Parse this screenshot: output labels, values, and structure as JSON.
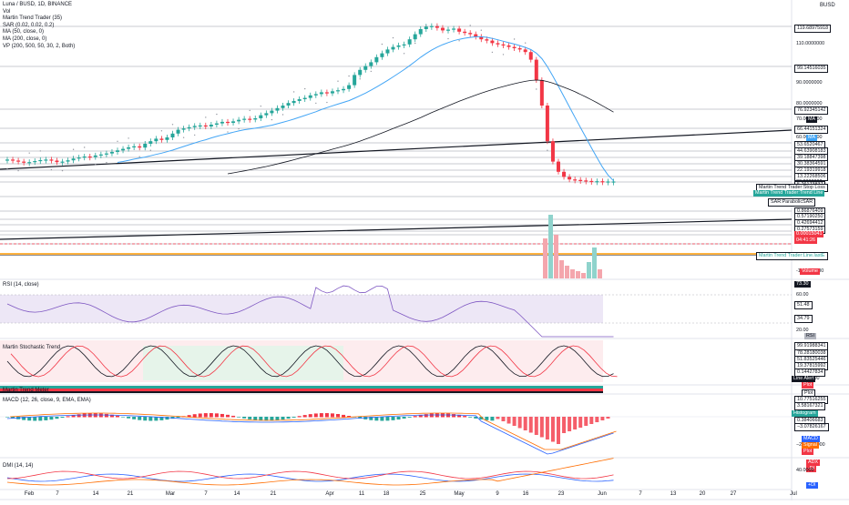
{
  "legend": {
    "symbol": "Luna / BUSD, 1D, BINANCE",
    "vol": "Vol",
    "martin": "Martin Trend Trader (35)",
    "sar": "SAR (0.02, 0.02, 0.2)",
    "ma50": "MA (50, close, 0)",
    "ma200": "MA (200, close, 0)",
    "vp": "VP (200, 500, 50, 30, 2, Both)"
  },
  "pane_titles": {
    "rsi": "RSI (14, close)",
    "stoch": "Martin Stochastic Trend",
    "meter": "Martin Trend Meter",
    "macd": "MACD (12, 26, close, 9, EMA, EMA)",
    "dmi": "DMI (14, 14)"
  },
  "top_unit": "BUSD",
  "price_axis": [
    {
      "text": "119.68975918",
      "tag": true,
      "bg": "#ffffff",
      "fg": "#131722",
      "border": true
    },
    {
      "text": "110.0000000",
      "tag": false
    },
    {
      "text": "99.14516035",
      "tag": true,
      "bg": "#ffffff",
      "fg": "#131722",
      "border": true
    },
    {
      "text": "90.0000000",
      "tag": false
    },
    {
      "text": "80.0000000",
      "tag": false
    },
    {
      "text": "76.92345142",
      "tag": true,
      "bg": "#ffffff",
      "fg": "#131722",
      "border": true
    },
    {
      "text": "70.0000000",
      "tag": false
    },
    {
      "text": "66.44151324",
      "tag": true,
      "bg": "#ffffff",
      "fg": "#131722",
      "border": true
    },
    {
      "text": "60.0000000",
      "tag": false
    },
    {
      "text": "53.6520467",
      "tag": true,
      "bg": "#ffffff",
      "fg": "#131722",
      "border": true
    },
    {
      "text": "44.63908183",
      "tag": true,
      "bg": "#ffffff",
      "fg": "#131722",
      "border": true
    },
    {
      "text": "39.18847398",
      "tag": true,
      "bg": "#ffffff",
      "fg": "#131722",
      "border": true
    },
    {
      "text": "30.38364591",
      "tag": true,
      "bg": "#ffffff",
      "fg": "#131722",
      "border": true
    },
    {
      "text": "22.19319918",
      "tag": true,
      "bg": "#ffffff",
      "fg": "#131722",
      "border": true
    },
    {
      "text": "13.22268506",
      "tag": true,
      "bg": "#ffffff",
      "fg": "#131722",
      "border": true
    },
    {
      "text": "30.0000000",
      "tag": false
    },
    {
      "text": "5.26173837",
      "tag": true,
      "bg": "#ffffff",
      "fg": "#131722",
      "border": true
    },
    {
      "text": "0.86876409",
      "tag": true,
      "bg": "#ffffff",
      "fg": "#131722",
      "border": true
    },
    {
      "text": "0.57190250",
      "tag": true,
      "bg": "#ffffff",
      "fg": "#131722",
      "border": true
    },
    {
      "text": "0.42694412",
      "tag": true,
      "bg": "#ffffff",
      "fg": "#131722",
      "border": true
    },
    {
      "text": "0.27573159",
      "tag": true,
      "bg": "#ffffff",
      "fg": "#131722",
      "border": true
    },
    {
      "text": "0.00015041",
      "tag": true,
      "bg": "#f23645",
      "fg": "#ffffff",
      "border": false
    },
    {
      "text": "04:41:26",
      "tag": true,
      "bg": "#f23645",
      "fg": "#ffffff",
      "border": false
    },
    {
      "text": "0.0000000",
      "tag": false
    },
    {
      "text": "-10.0000000",
      "tag": false
    }
  ],
  "price_side_tags": [
    {
      "text": "MA",
      "bg": "#131722"
    },
    {
      "text": "MA",
      "bg": "#42a5f5"
    },
    {
      "text": "Martin Trend Trader:Stop Loss",
      "bg": "#ffffff",
      "fg": "#131722"
    },
    {
      "text": "Martin Trend Trader:Trend Line",
      "bg": "#26a69a"
    },
    {
      "text": "SAR:ParabolicSAR",
      "bg": "#ffffff",
      "fg": "#131722"
    },
    {
      "text": "Martin Trend Trader:Line.lastE",
      "bg": "#ffffff",
      "fg": "#26a69a"
    },
    {
      "text": "Volume",
      "bg": "#f23645"
    }
  ],
  "rsi_axis": [
    {
      "text": "73.30",
      "tag": true,
      "bg": "#131722",
      "fg": "#ffffff"
    },
    {
      "text": "60.00",
      "tag": false
    },
    {
      "text": "51.48",
      "tag": true,
      "bg": "#ffffff",
      "fg": "#131722"
    },
    {
      "text": "34.79",
      "tag": true,
      "bg": "#ffffff",
      "fg": "#131722"
    },
    {
      "text": "20.00",
      "tag": false
    },
    {
      "text": "RSI",
      "tag": true,
      "bg": "#b2b5be",
      "fg": "#131722"
    }
  ],
  "stoch_axis": [
    {
      "text": "99.91988341",
      "tag": true
    },
    {
      "text": "78.28180038",
      "tag": true
    },
    {
      "text": "51.83525446",
      "tag": true
    },
    {
      "text": "19.37815992",
      "tag": true
    },
    {
      "text": "0.14427834",
      "tag": true
    },
    {
      "text": "0.0000000",
      "tag": false
    }
  ],
  "stoch_side_tags": [
    {
      "text": "Line Alert",
      "bg": "#131722"
    },
    {
      "text": "Plot",
      "bg": "#f23645"
    },
    {
      "text": "Plot",
      "bg": "#ffffff",
      "fg": "#131722"
    }
  ],
  "macd_axis": [
    {
      "text": "10.77516255",
      "tag": true
    },
    {
      "text": "3.58167321",
      "tag": true
    },
    {
      "text": "0.38406683",
      "tag": true
    },
    {
      "text": "−3.07826167",
      "tag": true
    },
    {
      "text": "−20.0000000",
      "tag": false
    }
  ],
  "macd_side_tags": [
    {
      "text": "Histogram",
      "bg": "#26a69a"
    },
    {
      "text": "MACD",
      "bg": "#2962ff"
    },
    {
      "text": "Signal",
      "bg": "#ff6d00"
    },
    {
      "text": "Plot",
      "bg": "#f23645"
    }
  ],
  "dmi_axis": [
    {
      "text": "ADX",
      "bg": "#f23645"
    },
    {
      "text": "-DI",
      "bg": "#f23645"
    },
    {
      "text": "40.0000",
      "bg": null
    },
    {
      "text": "+DI",
      "bg": "#2962ff"
    }
  ],
  "time_axis": [
    "Feb",
    "7",
    "14",
    "21",
    "Mar",
    "7",
    "14",
    "21",
    "Apr",
    "11",
    "18",
    "25",
    "May",
    "9",
    "16",
    "23",
    "Jun",
    "7",
    "13",
    "20",
    "27",
    "Jul"
  ],
  "colors": {
    "up": "#26a69a",
    "down": "#f23645",
    "ma50": "#42a5f5",
    "ma200": "#131722",
    "rsi": "#7e57c2",
    "rsi_band": "#ede7f6",
    "macd": "#2962ff",
    "signal": "#ff6d00"
  }
}
